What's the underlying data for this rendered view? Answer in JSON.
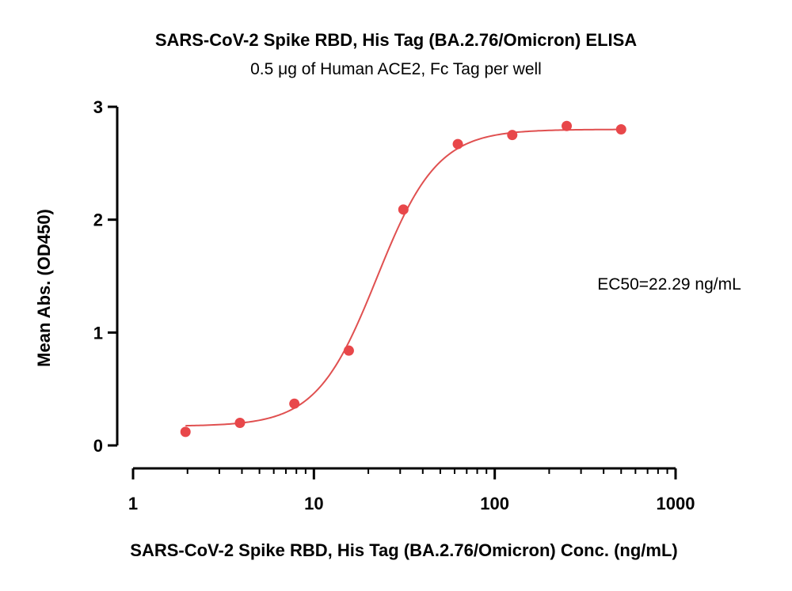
{
  "chart_data": {
    "type": "scatter",
    "title": "SARS-CoV-2 Spike RBD, His Tag (BA.2.76/Omicron) ELISA",
    "subtitle": "0.5 μg of Human ACE2, Fc Tag per well",
    "xlabel": "SARS-CoV-2 Spike RBD, His Tag (BA.2.76/Omicron) Conc. (ng/mL)",
    "ylabel": "Mean Abs. (OD450)",
    "x_scale": "log",
    "xlim": [
      1,
      1000
    ],
    "ylim": [
      0,
      3
    ],
    "x_ticks": [
      "1",
      "10",
      "100",
      "1000"
    ],
    "y_ticks": [
      "0",
      "1",
      "2",
      "3"
    ],
    "annotation": "EC50=22.29 ng/mL",
    "grid": false,
    "point_color": "#e8474a",
    "curve_color": "#e05050",
    "series": [
      {
        "x": [
          1.95,
          3.9,
          7.8,
          15.6,
          31.25,
          62.5,
          125,
          250,
          500
        ],
        "y": [
          0.12,
          0.2,
          0.37,
          0.84,
          2.09,
          2.67,
          2.75,
          2.83,
          2.8
        ]
      }
    ],
    "fit": {
      "bottom": 0.17,
      "top": 2.8,
      "ec50": 22.29,
      "hill": 2.6
    }
  }
}
